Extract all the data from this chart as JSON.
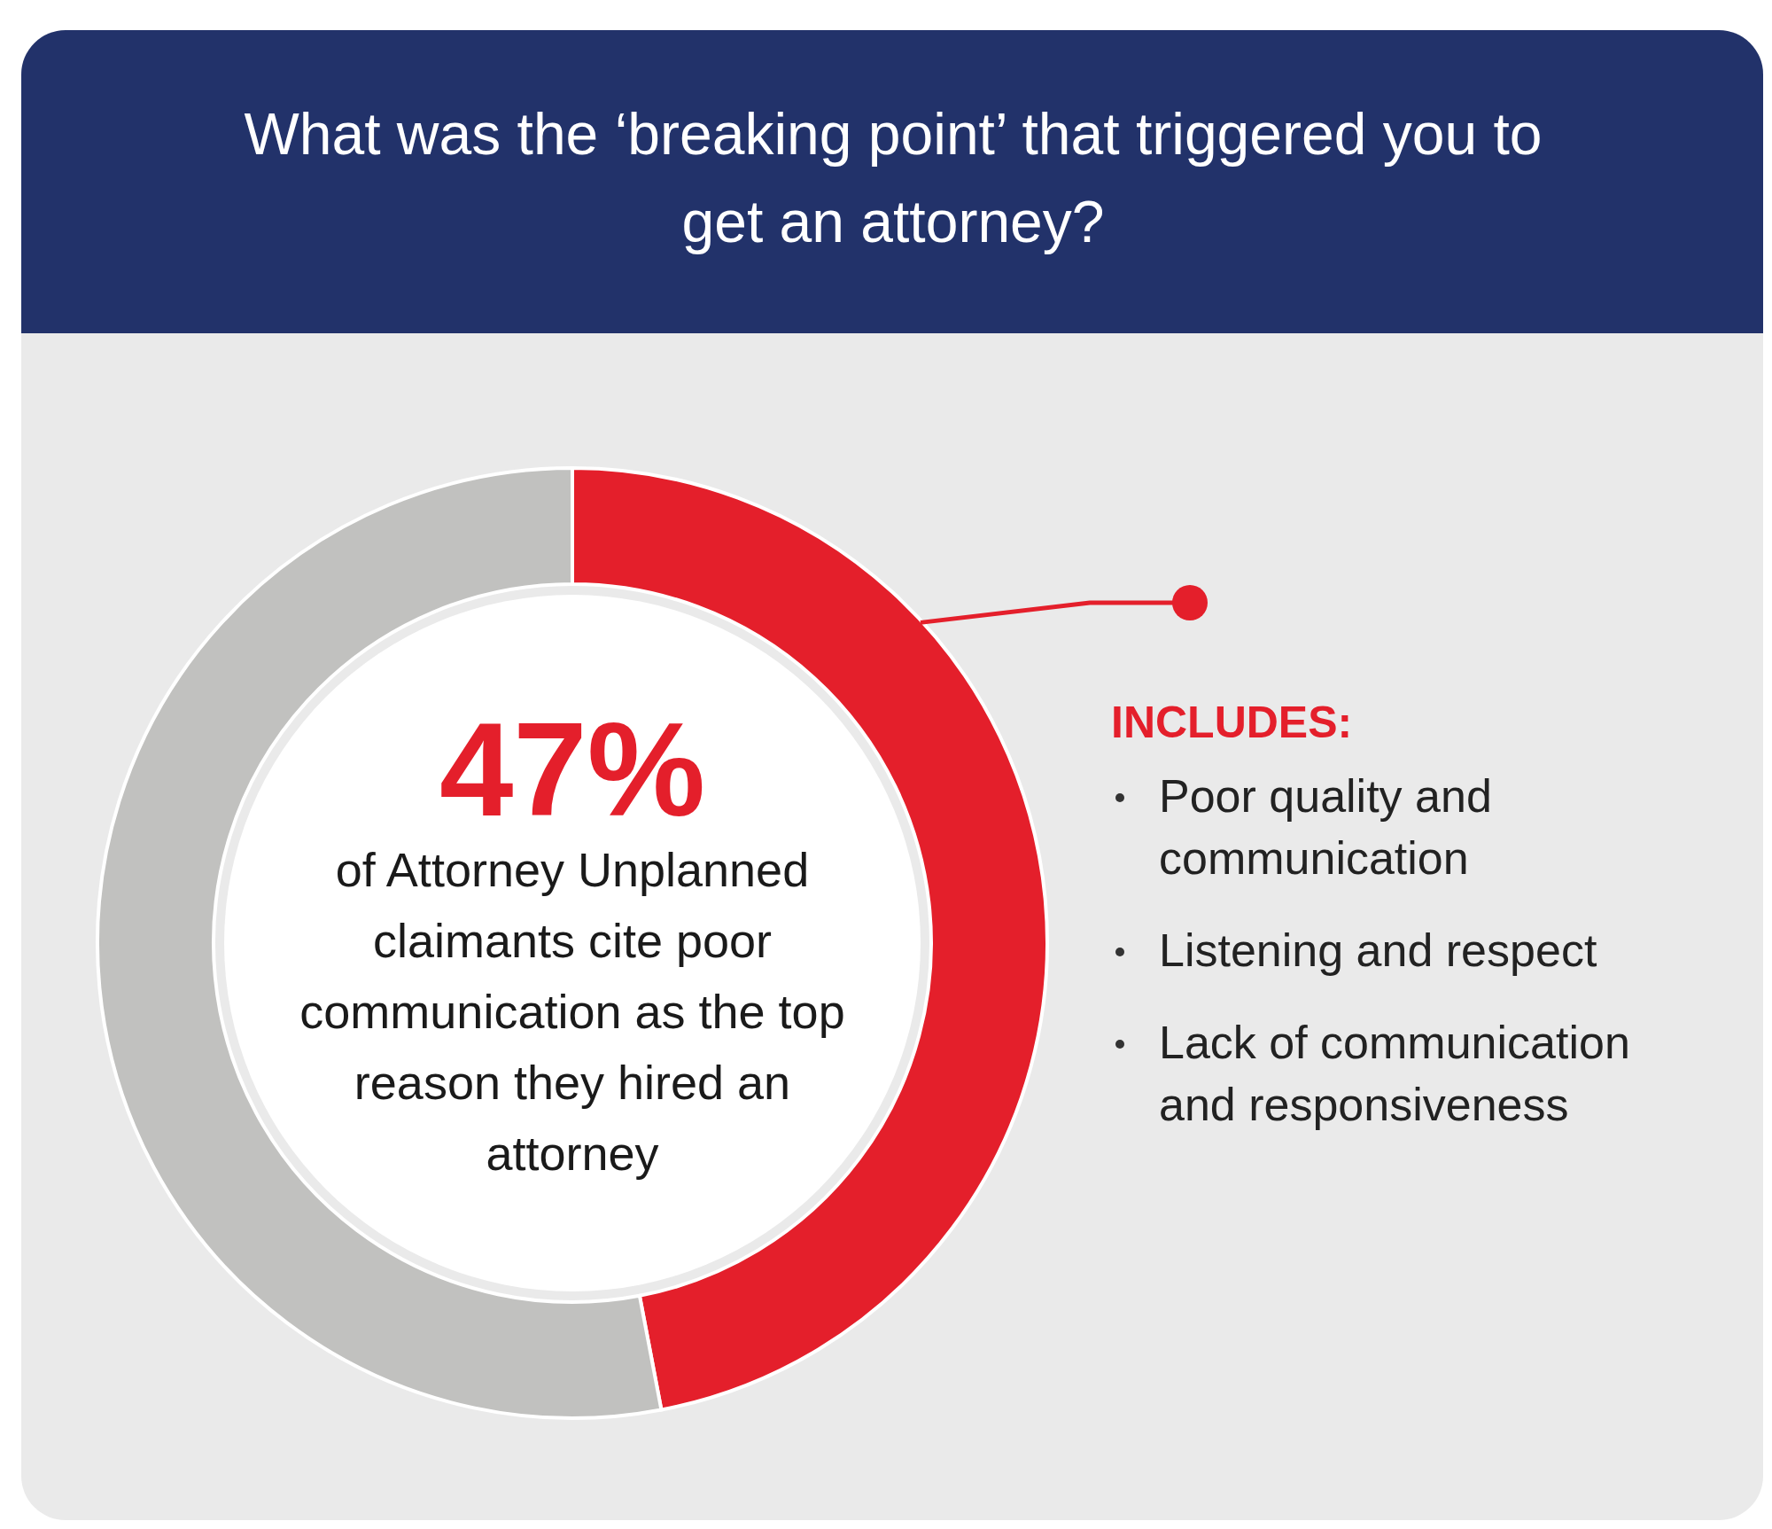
{
  "chart_data": {
    "type": "donut",
    "title": "What was the ‘breaking point’ that triggered you to get an attorney?",
    "categories": [
      null,
      null
    ],
    "values": [
      47,
      53
    ],
    "colors": [
      "#e41f2b",
      "#c1c1bf"
    ],
    "value_labels": [
      "47%",
      null
    ],
    "annotations": [
      "of Attorney Unplanned claimants cite poor communication as the top reason they hired an attorney",
      "INCLUDES:",
      "Poor quality and communication",
      "Listening and respect",
      "Lack of communication and responsiveness"
    ]
  }
}
